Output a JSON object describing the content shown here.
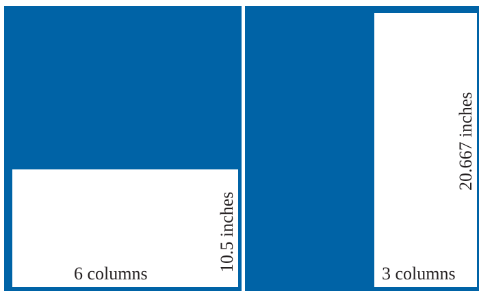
{
  "colors": {
    "panel_fill": "#0063a6",
    "box_fill": "#ffffff",
    "text": "#231f20"
  },
  "left_panel": {
    "width_label": "6 columns",
    "height_label": "10.5 inches"
  },
  "right_panel": {
    "width_label": "3 columns",
    "height_label": "20.667 inches"
  }
}
